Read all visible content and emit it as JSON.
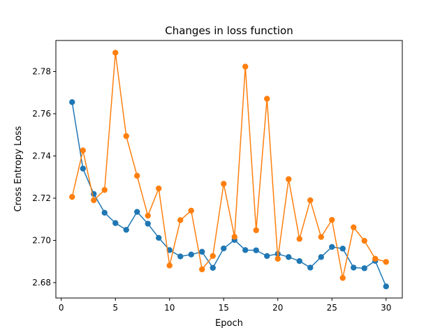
{
  "chart_data": {
    "type": "line",
    "title": "Changes in loss function",
    "xlabel": "Epoch",
    "ylabel": "Cross Entropy Loss",
    "xlim": [
      -0.5,
      31.5
    ],
    "ylim": [
      2.6727,
      2.7947
    ],
    "xticks": [
      0,
      5,
      10,
      15,
      20,
      25,
      30
    ],
    "yticks": [
      2.68,
      2.7,
      2.72,
      2.74,
      2.76,
      2.78
    ],
    "grid": false,
    "legend": "none",
    "x": [
      1,
      2,
      3,
      4,
      5,
      6,
      7,
      8,
      9,
      10,
      11,
      12,
      13,
      14,
      15,
      16,
      17,
      18,
      19,
      20,
      21,
      22,
      23,
      24,
      25,
      26,
      27,
      28,
      29,
      30
    ],
    "series": [
      {
        "color": "#1f77b4",
        "values": [
          2.7655,
          2.734,
          2.722,
          2.7131,
          2.7082,
          2.705,
          2.7135,
          2.7079,
          2.7012,
          2.6954,
          2.6924,
          2.6933,
          2.6946,
          2.687,
          2.6962,
          2.7002,
          2.6954,
          2.6953,
          2.6926,
          2.6936,
          2.6921,
          2.6902,
          2.6871,
          2.6921,
          2.6969,
          2.6961,
          2.6871,
          2.6868,
          2.6903,
          2.6782
        ]
      },
      {
        "color": "#ff7f0e",
        "values": [
          2.7206,
          2.7426,
          2.719,
          2.7239,
          2.7889,
          2.7494,
          2.7306,
          2.7117,
          2.7246,
          2.6881,
          2.7096,
          2.7141,
          2.6863,
          2.6926,
          2.7268,
          2.7017,
          2.7823,
          2.7048,
          2.7671,
          2.6913,
          2.729,
          2.7007,
          2.719,
          2.7016,
          2.7097,
          2.6822,
          2.7062,
          2.6998,
          2.6913,
          2.6898
        ]
      }
    ]
  }
}
